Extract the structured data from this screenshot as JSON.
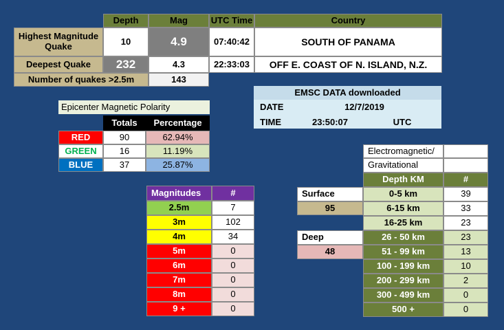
{
  "summary": {
    "headers": {
      "depth": "Depth",
      "mag": "Mag",
      "utc_time": "UTC Time",
      "country": "Country"
    },
    "highest": {
      "label": "Highest Magnitude Quake",
      "depth": "10",
      "mag": "4.9",
      "time": "07:40:42",
      "country": "SOUTH OF PANAMA"
    },
    "deepest": {
      "label": "Deepest Quake",
      "depth": "232",
      "mag": "4.3",
      "time": "22:33:03",
      "country": "OFF E. COAST OF N. ISLAND, N.Z."
    },
    "count": {
      "label": "Number of quakes >2.5m",
      "value": "143"
    }
  },
  "emsc": {
    "title": "EMSC DATA downloaded",
    "date_label": "DATE",
    "date_value": "12/7/2019",
    "time_label": "TIME",
    "time_value": "23:50:07",
    "tz": "UTC"
  },
  "polarity": {
    "title": "Epicenter Magnetic Polarity",
    "headers": {
      "totals": "Totals",
      "percentage": "Percentage"
    },
    "rows": [
      {
        "label": "RED",
        "total": "90",
        "pct": "62.94%"
      },
      {
        "label": "GREEN",
        "total": "16",
        "pct": "11.19%"
      },
      {
        "label": "BLUE",
        "total": "37",
        "pct": "25.87%"
      }
    ]
  },
  "magnitudes": {
    "header": "Magnitudes",
    "count_header": "#",
    "rows": [
      {
        "label": "2.5m",
        "count": "7"
      },
      {
        "label": "3m",
        "count": "102"
      },
      {
        "label": "4m",
        "count": "34"
      },
      {
        "label": "5m",
        "count": "0"
      },
      {
        "label": "6m",
        "count": "0"
      },
      {
        "label": "7m",
        "count": "0"
      },
      {
        "label": "8m",
        "count": "0"
      },
      {
        "label": "9 +",
        "count": "0"
      }
    ]
  },
  "depth": {
    "title_line1": "Electromagnetic/",
    "title_line2": "Gravitational",
    "header": "Depth KM",
    "count_header": "#",
    "surface_label": "Surface",
    "surface_value": "95",
    "deep_label": "Deep",
    "deep_value": "48",
    "rows": [
      {
        "label": "0-5 km",
        "count": "39"
      },
      {
        "label": "6-15 km",
        "count": "33"
      },
      {
        "label": "16-25 km",
        "count": "23"
      },
      {
        "label": "26 - 50 km",
        "count": "23"
      },
      {
        "label": "51 - 99 km",
        "count": "13"
      },
      {
        "label": "100 - 199 km",
        "count": "10"
      },
      {
        "label": "200 - 299 km",
        "count": "2"
      },
      {
        "label": "300 - 499 km",
        "count": "0"
      },
      {
        "label": "500 +",
        "count": "0"
      }
    ]
  },
  "colors": {
    "background": "#1f467a",
    "olive": "#6b7f3a",
    "tan": "#c6b98f",
    "purple": "#7030a0"
  }
}
